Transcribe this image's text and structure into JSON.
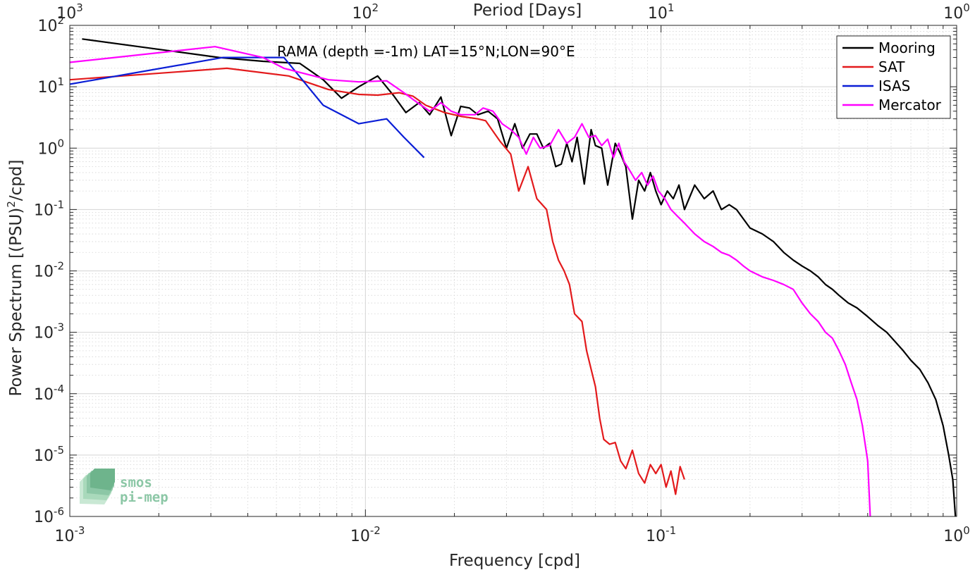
{
  "chart_data": {
    "type": "line",
    "annotation": "RAMA (depth =-1m) LAT=15°N;LON=90°E",
    "xlabel": "Frequency [cpd]",
    "ylabel": "Power Spectrum [(PSU)²/cpd]",
    "top_xlabel": "Period [Days]",
    "xscale": "log",
    "yscale": "log",
    "xlim": [
      0.001,
      1
    ],
    "ylim": [
      1e-06,
      100
    ],
    "grid": true,
    "legend_position": "top-right",
    "x_ticks": [
      {
        "value": 0.001,
        "base": "10",
        "exp": "-3"
      },
      {
        "value": 0.01,
        "base": "10",
        "exp": "-2"
      },
      {
        "value": 0.1,
        "base": "10",
        "exp": "-1"
      },
      {
        "value": 1,
        "base": "10",
        "exp": "0"
      }
    ],
    "top_ticks": [
      {
        "value": 0.001,
        "base": "10",
        "exp": "3"
      },
      {
        "value": 0.01,
        "base": "10",
        "exp": "2"
      },
      {
        "value": 0.1,
        "base": "10",
        "exp": "1"
      },
      {
        "value": 1,
        "base": "10",
        "exp": "0"
      }
    ],
    "y_ticks": [
      {
        "value": 100,
        "base": "10",
        "exp": "2"
      },
      {
        "value": 10,
        "base": "10",
        "exp": "1"
      },
      {
        "value": 1,
        "base": "10",
        "exp": "0"
      },
      {
        "value": 0.1,
        "base": "10",
        "exp": "-1"
      },
      {
        "value": 0.01,
        "base": "10",
        "exp": "-2"
      },
      {
        "value": 0.001,
        "base": "10",
        "exp": "-3"
      },
      {
        "value": 0.0001,
        "base": "10",
        "exp": "-4"
      },
      {
        "value": 1e-05,
        "base": "10",
        "exp": "-5"
      },
      {
        "value": 1e-06,
        "base": "10",
        "exp": "-6"
      }
    ],
    "series": [
      {
        "name": "Mooring",
        "color": "#000000",
        "points": [
          [
            0.0011,
            60
          ],
          [
            0.0032,
            30
          ],
          [
            0.0045,
            26
          ],
          [
            0.006,
            24
          ],
          [
            0.0072,
            13
          ],
          [
            0.0083,
            6.5
          ],
          [
            0.0095,
            10
          ],
          [
            0.011,
            15
          ],
          [
            0.0125,
            7
          ],
          [
            0.0137,
            3.8
          ],
          [
            0.0152,
            5.5
          ],
          [
            0.0165,
            3.5
          ],
          [
            0.018,
            6.8
          ],
          [
            0.0195,
            1.6
          ],
          [
            0.021,
            4.8
          ],
          [
            0.0225,
            4.5
          ],
          [
            0.024,
            3.5
          ],
          [
            0.026,
            4.0
          ],
          [
            0.028,
            3.0
          ],
          [
            0.03,
            1.0
          ],
          [
            0.032,
            2.5
          ],
          [
            0.034,
            1.0
          ],
          [
            0.036,
            1.7
          ],
          [
            0.038,
            1.7
          ],
          [
            0.04,
            1.0
          ],
          [
            0.042,
            1.2
          ],
          [
            0.044,
            0.5
          ],
          [
            0.046,
            0.55
          ],
          [
            0.048,
            1.2
          ],
          [
            0.05,
            0.6
          ],
          [
            0.052,
            1.5
          ],
          [
            0.055,
            0.26
          ],
          [
            0.058,
            2.0
          ],
          [
            0.06,
            1.1
          ],
          [
            0.063,
            1.0
          ],
          [
            0.066,
            0.25
          ],
          [
            0.07,
            1.2
          ],
          [
            0.073,
            0.8
          ],
          [
            0.076,
            0.5
          ],
          [
            0.08,
            0.07
          ],
          [
            0.084,
            0.3
          ],
          [
            0.088,
            0.2
          ],
          [
            0.092,
            0.4
          ],
          [
            0.096,
            0.2
          ],
          [
            0.1,
            0.12
          ],
          [
            0.105,
            0.2
          ],
          [
            0.11,
            0.15
          ],
          [
            0.115,
            0.25
          ],
          [
            0.12,
            0.1
          ],
          [
            0.13,
            0.25
          ],
          [
            0.14,
            0.15
          ],
          [
            0.15,
            0.2
          ],
          [
            0.16,
            0.1
          ],
          [
            0.17,
            0.12
          ],
          [
            0.18,
            0.1
          ],
          [
            0.19,
            0.07
          ],
          [
            0.2,
            0.05
          ],
          [
            0.22,
            0.04
          ],
          [
            0.24,
            0.03
          ],
          [
            0.26,
            0.02
          ],
          [
            0.28,
            0.015
          ],
          [
            0.3,
            0.012
          ],
          [
            0.32,
            0.01
          ],
          [
            0.34,
            0.008
          ],
          [
            0.36,
            0.006
          ],
          [
            0.38,
            0.005
          ],
          [
            0.4,
            0.004
          ],
          [
            0.43,
            0.003
          ],
          [
            0.46,
            0.0025
          ],
          [
            0.5,
            0.0018
          ],
          [
            0.54,
            0.0013
          ],
          [
            0.58,
            0.001
          ],
          [
            0.62,
            0.0007
          ],
          [
            0.66,
            0.0005
          ],
          [
            0.7,
            0.00035
          ],
          [
            0.75,
            0.00025
          ],
          [
            0.8,
            0.00015
          ],
          [
            0.85,
            8e-05
          ],
          [
            0.9,
            3e-05
          ],
          [
            0.94,
            1e-05
          ],
          [
            0.97,
            4e-06
          ],
          [
            0.99,
            1e-06
          ]
        ]
      },
      {
        "name": "SAT",
        "color": "#e31a1c",
        "points": [
          [
            0.001,
            13
          ],
          [
            0.0034,
            20
          ],
          [
            0.0055,
            15
          ],
          [
            0.0075,
            9
          ],
          [
            0.0095,
            7.5
          ],
          [
            0.011,
            7.3
          ],
          [
            0.013,
            8
          ],
          [
            0.0145,
            7
          ],
          [
            0.016,
            5
          ],
          [
            0.0185,
            3.8
          ],
          [
            0.021,
            3.3
          ],
          [
            0.024,
            3
          ],
          [
            0.0255,
            2.8
          ],
          [
            0.0285,
            1.3
          ],
          [
            0.031,
            0.8
          ],
          [
            0.033,
            0.2
          ],
          [
            0.0355,
            0.5
          ],
          [
            0.038,
            0.15
          ],
          [
            0.041,
            0.1
          ],
          [
            0.043,
            0.03
          ],
          [
            0.045,
            0.015
          ],
          [
            0.047,
            0.01
          ],
          [
            0.049,
            0.006
          ],
          [
            0.051,
            0.002
          ],
          [
            0.054,
            0.0015
          ],
          [
            0.056,
            0.0005
          ],
          [
            0.058,
            0.00025
          ],
          [
            0.06,
            0.00013
          ],
          [
            0.062,
            4e-05
          ],
          [
            0.064,
            1.8e-05
          ],
          [
            0.067,
            1.5e-05
          ],
          [
            0.07,
            1.6e-05
          ],
          [
            0.073,
            8e-06
          ],
          [
            0.076,
            6e-06
          ],
          [
            0.08,
            1.2e-05
          ],
          [
            0.084,
            5e-06
          ],
          [
            0.088,
            3.5e-06
          ],
          [
            0.092,
            7e-06
          ],
          [
            0.096,
            5e-06
          ],
          [
            0.1,
            7e-06
          ],
          [
            0.104,
            3e-06
          ],
          [
            0.108,
            5.5e-06
          ],
          [
            0.112,
            2.3e-06
          ],
          [
            0.116,
            6.5e-06
          ],
          [
            0.12,
            4e-06
          ]
        ]
      },
      {
        "name": "ISAS",
        "color": "#0a1ed6",
        "points": [
          [
            0.001,
            11
          ],
          [
            0.0033,
            30
          ],
          [
            0.0053,
            30
          ],
          [
            0.0072,
            5
          ],
          [
            0.0095,
            2.5
          ],
          [
            0.0118,
            3
          ],
          [
            0.0135,
            1.5
          ],
          [
            0.0158,
            0.7
          ]
        ]
      },
      {
        "name": "Mercator",
        "color": "#ff00ff",
        "points": [
          [
            0.001,
            25
          ],
          [
            0.0031,
            45
          ],
          [
            0.0045,
            30
          ],
          [
            0.0053,
            20
          ],
          [
            0.0075,
            13
          ],
          [
            0.0095,
            12
          ],
          [
            0.0118,
            12.5
          ],
          [
            0.0135,
            8
          ],
          [
            0.015,
            5.5
          ],
          [
            0.0165,
            4
          ],
          [
            0.018,
            5.5
          ],
          [
            0.0195,
            4
          ],
          [
            0.021,
            3.5
          ],
          [
            0.0235,
            3.5
          ],
          [
            0.025,
            4.5
          ],
          [
            0.027,
            4
          ],
          [
            0.029,
            2.5
          ],
          [
            0.031,
            2
          ],
          [
            0.033,
            1.5
          ],
          [
            0.035,
            0.8
          ],
          [
            0.037,
            1.5
          ],
          [
            0.039,
            1.0
          ],
          [
            0.042,
            1.1
          ],
          [
            0.045,
            2
          ],
          [
            0.048,
            1.2
          ],
          [
            0.051,
            1.5
          ],
          [
            0.054,
            2.5
          ],
          [
            0.057,
            1.5
          ],
          [
            0.06,
            1.6
          ],
          [
            0.063,
            1.1
          ],
          [
            0.066,
            1.4
          ],
          [
            0.069,
            0.7
          ],
          [
            0.072,
            1.2
          ],
          [
            0.075,
            0.6
          ],
          [
            0.078,
            0.45
          ],
          [
            0.082,
            0.3
          ],
          [
            0.086,
            0.4
          ],
          [
            0.09,
            0.25
          ],
          [
            0.094,
            0.35
          ],
          [
            0.098,
            0.2
          ],
          [
            0.103,
            0.15
          ],
          [
            0.108,
            0.1
          ],
          [
            0.113,
            0.08
          ],
          [
            0.12,
            0.06
          ],
          [
            0.13,
            0.04
          ],
          [
            0.14,
            0.03
          ],
          [
            0.15,
            0.025
          ],
          [
            0.16,
            0.02
          ],
          [
            0.17,
            0.018
          ],
          [
            0.18,
            0.015
          ],
          [
            0.19,
            0.012
          ],
          [
            0.2,
            0.01
          ],
          [
            0.22,
            0.008
          ],
          [
            0.24,
            0.007
          ],
          [
            0.26,
            0.006
          ],
          [
            0.28,
            0.005
          ],
          [
            0.3,
            0.003
          ],
          [
            0.32,
            0.002
          ],
          [
            0.34,
            0.0015
          ],
          [
            0.36,
            0.001
          ],
          [
            0.38,
            0.0008
          ],
          [
            0.4,
            0.0005
          ],
          [
            0.42,
            0.0003
          ],
          [
            0.44,
            0.00015
          ],
          [
            0.46,
            8e-05
          ],
          [
            0.48,
            3e-05
          ],
          [
            0.5,
            8e-06
          ],
          [
            0.51,
            1e-06
          ]
        ]
      }
    ]
  },
  "logo": {
    "line1": "smos",
    "line2": "pi-mep"
  }
}
